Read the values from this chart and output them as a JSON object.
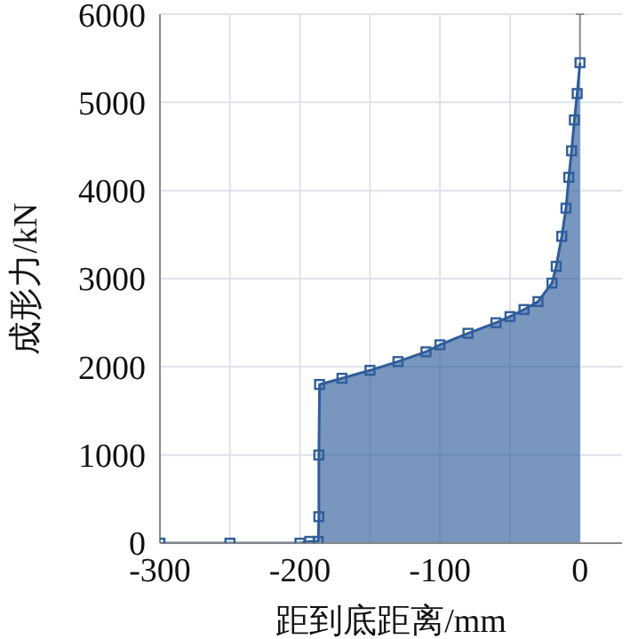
{
  "chart_data": {
    "type": "area",
    "xlabel": "距到底距离/mm",
    "ylabel": "成形力/kN",
    "x": [
      -300,
      -250,
      -200,
      -193,
      -187,
      -186.5,
      -186.5,
      -186,
      -170,
      -150,
      -130,
      -110,
      -100,
      -80,
      -60,
      -50,
      -40,
      -30,
      -20,
      -17,
      -13,
      -10,
      -8,
      -6,
      -4,
      -2,
      0
    ],
    "series": [
      {
        "color": "#2f5d9b",
        "values": [
          0,
          0,
          0,
          20,
          20,
          300,
          1000,
          1800,
          1870,
          1960,
          2060,
          2170,
          2250,
          2380,
          2500,
          2570,
          2650,
          2740,
          2950,
          3140,
          3480,
          3800,
          4150,
          4450,
          4800,
          5100,
          5450
        ],
        "errors": [
          null,
          null,
          null,
          null,
          null,
          null,
          null,
          null,
          null,
          null,
          null,
          null,
          null,
          null,
          null,
          null,
          null,
          null,
          null,
          null,
          null,
          null,
          null,
          null,
          null,
          null,
          [
            5450,
            6000
          ]
        ]
      }
    ],
    "xlim": [
      -300,
      30
    ],
    "xticks": [
      -300,
      {
        "value": -250,
        "label": null
      },
      -200,
      {
        "value": -150,
        "label": null
      },
      -100,
      {
        "value": -50,
        "label": null
      },
      0
    ],
    "ylim": [
      0,
      6000
    ],
    "yticks": [
      0,
      1000,
      2000,
      3000,
      4000,
      5000,
      6000
    ],
    "grid": true,
    "marker": "square",
    "line_style": "solid",
    "legend": false
  }
}
